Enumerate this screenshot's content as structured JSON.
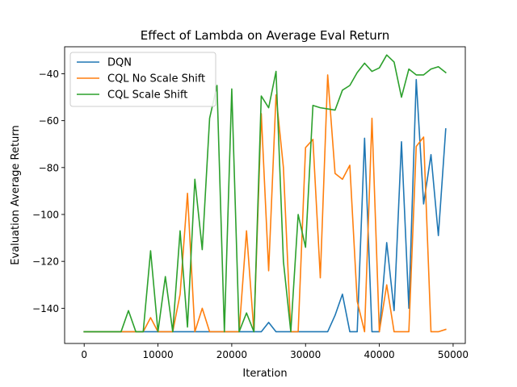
{
  "chart_data": {
    "type": "line",
    "title": "Effect of Lambda on Average Eval Return",
    "xlabel": "Iteration",
    "ylabel": "Evaluation Average Return",
    "xlim": [
      -2650,
      51650
    ],
    "ylim": [
      -155,
      -28.5
    ],
    "xticks": [
      0,
      10000,
      20000,
      30000,
      40000,
      50000
    ],
    "yticks": [
      -140,
      -120,
      -100,
      -80,
      -60,
      -40
    ],
    "grid": false,
    "legend_position": "top-left",
    "x": [
      0,
      1000,
      2000,
      3000,
      4000,
      5000,
      6000,
      7000,
      8000,
      9000,
      10000,
      11000,
      12000,
      13000,
      14000,
      15000,
      16000,
      17000,
      18000,
      19000,
      20000,
      21000,
      22000,
      23000,
      24000,
      25000,
      26000,
      27000,
      28000,
      29000,
      30000,
      31000,
      32000,
      33000,
      34000,
      35000,
      36000,
      37000,
      38000,
      39000,
      40000,
      41000,
      42000,
      43000,
      44000,
      45000,
      46000,
      47000,
      48000,
      49000
    ],
    "series": [
      {
        "name": "DQN",
        "color": "#1f77b4",
        "values": [
          -150,
          -150,
          -150,
          -150,
          -150,
          -150,
          -150,
          -150,
          -150,
          -150,
          -150,
          -150,
          -150,
          -150,
          -150,
          -150,
          -150,
          -150,
          -150,
          -150,
          -150,
          -150,
          -150,
          -150,
          -150,
          -146,
          -150,
          -150,
          -150,
          -150,
          -150,
          -150,
          -150,
          -150,
          -143,
          -134,
          -150,
          -150,
          -67.5,
          -150,
          -150,
          -112,
          -141,
          -69,
          -140,
          -42.5,
          -95.5,
          -74.5,
          -109,
          -63.5
        ]
      },
      {
        "name": "CQL No Scale Shift",
        "color": "#ff7f0e",
        "values": [
          -150,
          -150,
          -150,
          -150,
          -150,
          -150,
          -150,
          -150,
          -150,
          -144,
          -150,
          -150,
          -150,
          -134,
          -91,
          -150,
          -140,
          -150,
          -150,
          -150,
          -150,
          -150,
          -107,
          -150,
          -57,
          -124,
          -49,
          -80,
          -150,
          -150,
          -71.5,
          -68,
          -127,
          -40.5,
          -82.5,
          -85,
          -79,
          -137,
          -150,
          -59,
          -150,
          -130,
          -150,
          -150,
          -150,
          -71,
          -67,
          -150,
          -150,
          -149
        ]
      },
      {
        "name": "CQL Scale Shift",
        "color": "#2ca02c",
        "values": [
          -150,
          -150,
          -150,
          -150,
          -150,
          -150,
          -141,
          -150,
          -150,
          -115.5,
          -150,
          -126.5,
          -150,
          -107,
          -148,
          -85,
          -115,
          -59,
          -45,
          -150,
          -46.5,
          -150,
          -142,
          -150,
          -49.5,
          -54.5,
          -39,
          -120,
          -150,
          -100,
          -114,
          -53.5,
          -54.5,
          -55,
          -55.5,
          -47,
          -45,
          -39.5,
          -35.5,
          -39,
          -37.5,
          -32,
          -35,
          -50,
          -38,
          -40.5,
          -40.5,
          -38,
          -37,
          -39.5
        ]
      }
    ]
  }
}
